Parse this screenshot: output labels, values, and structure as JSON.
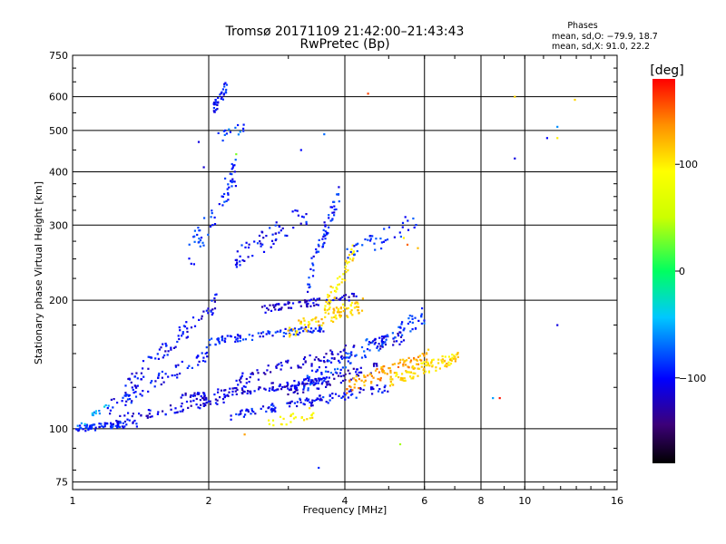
{
  "chart_data": {
    "type": "scatter",
    "title": "Tromsø 20171109 21:42:00–21:43:43",
    "subtitle": "RwPretec (Bp)",
    "xlabel": "Frequency [MHz]",
    "ylabel": "Stationary phase Virtual Height [km]",
    "x_scale": "log",
    "y_scale": "log",
    "xlim": [
      1,
      16
    ],
    "ylim": [
      72,
      750
    ],
    "x_ticks": [
      1,
      2,
      4,
      6,
      8,
      10,
      16
    ],
    "x_tick_labels": [
      "1",
      "2",
      "4",
      "6",
      "8",
      "10",
      "16"
    ],
    "y_ticks": [
      75,
      100,
      200,
      300,
      400,
      500,
      600,
      750
    ],
    "y_tick_labels": [
      "75",
      "100",
      "200",
      "300",
      "400",
      "500",
      "600",
      "750"
    ],
    "grid": true,
    "stats": {
      "heading": "Phases",
      "line_o": "mean, sd,O: −79.9, 18.7",
      "line_x": "mean, sd,X:  91.0, 22.2"
    },
    "colorbar": {
      "label": "[deg]",
      "range": [
        -180,
        180
      ],
      "ticks": [
        100,
        0,
        -100
      ],
      "tick_labels": [
        "100",
        "0",
        "−100"
      ]
    },
    "traces": [
      {
        "x0": 1.0,
        "x1": 1.4,
        "h0": 100,
        "h1": 103,
        "phase": -95,
        "n": 70,
        "spread": 0.018
      },
      {
        "x0": 1.25,
        "x1": 2.2,
        "h0": 105,
        "h1": 118,
        "phase": -110,
        "n": 70,
        "spread": 0.025
      },
      {
        "x0": 1.2,
        "x1": 2.0,
        "h0": 112,
        "h1": 150,
        "phase": -100,
        "n": 70,
        "spread": 0.04
      },
      {
        "x0": 1.3,
        "x1": 2.1,
        "h0": 125,
        "h1": 200,
        "phase": -105,
        "n": 80,
        "spread": 0.05
      },
      {
        "x0": 1.7,
        "x1": 3.7,
        "h0": 118,
        "h1": 130,
        "phase": -110,
        "n": 130,
        "spread": 0.022
      },
      {
        "x0": 2.2,
        "x1": 5.0,
        "h0": 107,
        "h1": 125,
        "phase": -100,
        "n": 110,
        "spread": 0.025
      },
      {
        "x0": 2.0,
        "x1": 3.6,
        "h0": 160,
        "h1": 172,
        "phase": -95,
        "n": 90,
        "spread": 0.02
      },
      {
        "x0": 2.3,
        "x1": 5.5,
        "h0": 130,
        "h1": 165,
        "phase": -115,
        "n": 110,
        "spread": 0.035
      },
      {
        "x0": 2.6,
        "x1": 4.3,
        "h0": 190,
        "h1": 205,
        "phase": -115,
        "n": 70,
        "spread": 0.02
      },
      {
        "x0": 3.0,
        "x1": 4.8,
        "h0": 122,
        "h1": 140,
        "phase": -120,
        "n": 60,
        "spread": 0.03
      },
      {
        "x0": 3.2,
        "x1": 6.0,
        "h0": 126,
        "h1": 185,
        "phase": -85,
        "n": 110,
        "spread": 0.05
      },
      {
        "x0": 3.0,
        "x1": 4.4,
        "h0": 170,
        "h1": 195,
        "phase": 110,
        "n": 90,
        "spread": 0.04
      },
      {
        "x0": 3.6,
        "x1": 4.2,
        "h0": 190,
        "h1": 260,
        "phase": 105,
        "n": 50,
        "spread": 0.05
      },
      {
        "x0": 4.0,
        "x1": 6.2,
        "h0": 125,
        "h1": 150,
        "phase": 130,
        "n": 90,
        "spread": 0.035
      },
      {
        "x0": 5.0,
        "x1": 7.2,
        "h0": 130,
        "h1": 148,
        "phase": 110,
        "n": 100,
        "spread": 0.035
      },
      {
        "x0": 3.3,
        "x1": 3.9,
        "h0": 220,
        "h1": 360,
        "phase": -95,
        "n": 60,
        "spread": 0.06
      },
      {
        "x0": 2.3,
        "x1": 3.3,
        "h0": 250,
        "h1": 320,
        "phase": -100,
        "n": 60,
        "spread": 0.06
      },
      {
        "x0": 1.8,
        "x1": 2.3,
        "h0": 250,
        "h1": 400,
        "phase": -90,
        "n": 60,
        "spread": 0.08
      },
      {
        "x0": 2.05,
        "x1": 2.2,
        "h0": 560,
        "h1": 640,
        "phase": -100,
        "n": 35,
        "spread": 0.03
      },
      {
        "x0": 2.1,
        "x1": 2.5,
        "h0": 480,
        "h1": 520,
        "phase": -80,
        "n": 15,
        "spread": 0.03
      },
      {
        "x0": 4.0,
        "x1": 5.8,
        "h0": 250,
        "h1": 310,
        "phase": -90,
        "n": 40,
        "spread": 0.05
      },
      {
        "x0": 2.7,
        "x1": 3.5,
        "h0": 102,
        "h1": 110,
        "phase": 95,
        "n": 25,
        "spread": 0.03
      },
      {
        "x0": 1.0,
        "x1": 1.2,
        "h0": 100,
        "h1": 112,
        "phase": -50,
        "n": 15,
        "spread": 0.025
      }
    ],
    "points": [
      {
        "x": 4.5,
        "h": 610,
        "phase": 160
      },
      {
        "x": 8.8,
        "h": 118,
        "phase": 175
      },
      {
        "x": 8.5,
        "h": 118,
        "phase": -55
      },
      {
        "x": 9.5,
        "h": 430,
        "phase": -110
      },
      {
        "x": 9.5,
        "h": 600,
        "phase": 110
      },
      {
        "x": 11.2,
        "h": 480,
        "phase": -100
      },
      {
        "x": 11.8,
        "h": 510,
        "phase": -60
      },
      {
        "x": 11.8,
        "h": 480,
        "phase": 100
      },
      {
        "x": 12.9,
        "h": 590,
        "phase": 110
      },
      {
        "x": 11.8,
        "h": 175,
        "phase": -110
      },
      {
        "x": 5.3,
        "h": 92,
        "phase": 40
      },
      {
        "x": 3.5,
        "h": 81,
        "phase": -90
      },
      {
        "x": 2.4,
        "h": 97,
        "phase": 130
      },
      {
        "x": 3.2,
        "h": 450,
        "phase": -100
      },
      {
        "x": 3.6,
        "h": 490,
        "phase": -70
      },
      {
        "x": 2.3,
        "h": 440,
        "phase": 30
      },
      {
        "x": 1.9,
        "h": 470,
        "phase": -110
      },
      {
        "x": 1.95,
        "h": 410,
        "phase": -115
      },
      {
        "x": 5.5,
        "h": 270,
        "phase": 150
      },
      {
        "x": 5.4,
        "h": 280,
        "phase": 100
      },
      {
        "x": 5.8,
        "h": 265,
        "phase": 120
      }
    ]
  }
}
